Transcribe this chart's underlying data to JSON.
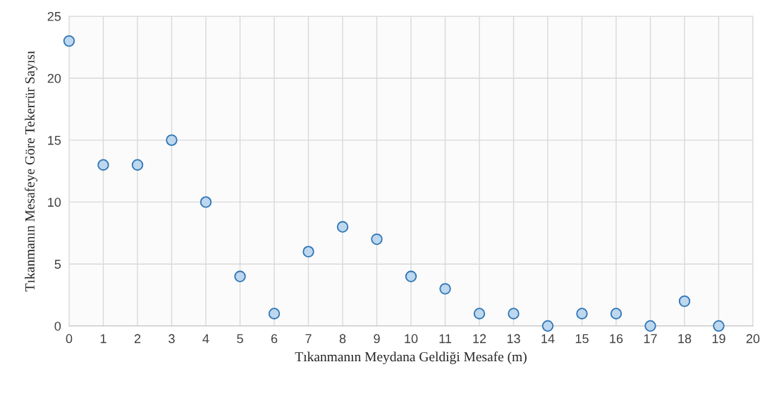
{
  "chart_data": {
    "type": "scatter",
    "xlabel": "Tıkanmanın Meydana Geldiği Mesafe (m)",
    "ylabel": "Tıkanmanın Mesafeye Göre Tekerrür Sayısı",
    "x": [
      0,
      1,
      2,
      3,
      4,
      5,
      6,
      7,
      8,
      9,
      10,
      11,
      12,
      13,
      14,
      15,
      16,
      17,
      18,
      19
    ],
    "values": [
      23,
      13,
      13,
      15,
      10,
      4,
      1,
      6,
      8,
      7,
      4,
      3,
      1,
      1,
      0,
      1,
      1,
      0,
      2,
      0
    ],
    "color": "#bdd7ee",
    "marker": "circle",
    "xlim": [
      0,
      20
    ],
    "xticks": [
      0,
      1,
      2,
      3,
      4,
      5,
      6,
      7,
      8,
      9,
      10,
      11,
      12,
      13,
      14,
      15,
      16,
      17,
      18,
      19,
      20
    ],
    "ylim": [
      0,
      25
    ],
    "yticks": [
      0,
      5,
      10,
      15,
      20,
      25
    ],
    "grid": true
  }
}
